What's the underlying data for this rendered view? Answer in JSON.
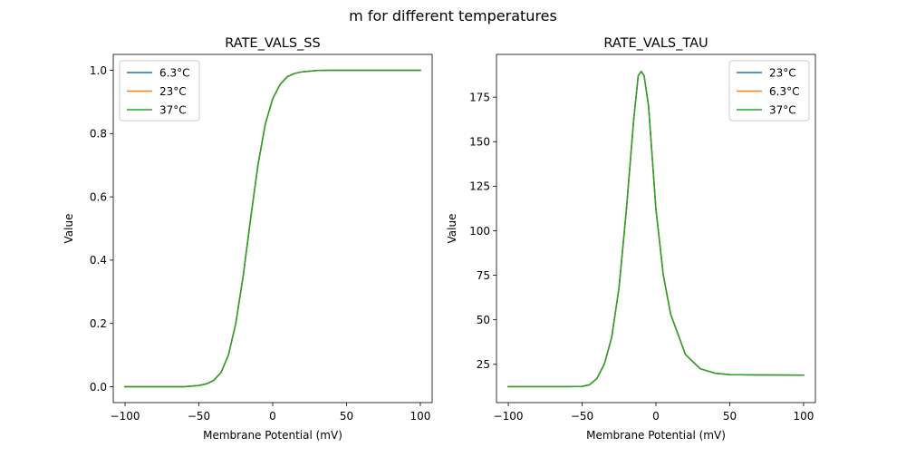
{
  "figure": {
    "suptitle": "m for different temperatures"
  },
  "chart_data": [
    {
      "type": "line",
      "title": "RATE_VALS_SS",
      "xlabel": "Membrane Potential (mV)",
      "ylabel": "Value",
      "xlim": [
        -108,
        108
      ],
      "ylim": [
        -0.05,
        1.05
      ],
      "xticks": [
        -100,
        -50,
        0,
        50,
        100
      ],
      "xtick_labels": [
        "−100",
        "−50",
        "0",
        "50",
        "100"
      ],
      "yticks": [
        0.0,
        0.2,
        0.4,
        0.6,
        0.8,
        1.0
      ],
      "ytick_labels": [
        "0.0",
        "0.2",
        "0.4",
        "0.6",
        "0.8",
        "1.0"
      ],
      "legend_position": "upper left",
      "grid": false,
      "x": [
        -100,
        -90,
        -80,
        -70,
        -60,
        -50,
        -45,
        -40,
        -35,
        -30,
        -25,
        -20,
        -15,
        -10,
        -5,
        0,
        5,
        10,
        15,
        20,
        30,
        40,
        50,
        60,
        70,
        80,
        90,
        100
      ],
      "series": [
        {
          "name": "6.3°C",
          "color": "#1f77b4",
          "values": [
            0.0,
            0.0,
            0.0,
            0.0,
            0.0,
            0.004,
            0.009,
            0.02,
            0.045,
            0.1,
            0.2,
            0.35,
            0.53,
            0.7,
            0.83,
            0.91,
            0.955,
            0.98,
            0.99,
            0.995,
            0.999,
            1.0,
            1.0,
            1.0,
            1.0,
            1.0,
            1.0,
            1.0
          ]
        },
        {
          "name": "23°C",
          "color": "#ff7f0e",
          "values": [
            0.0,
            0.0,
            0.0,
            0.0,
            0.0,
            0.004,
            0.009,
            0.02,
            0.045,
            0.1,
            0.2,
            0.35,
            0.53,
            0.7,
            0.83,
            0.91,
            0.955,
            0.98,
            0.99,
            0.995,
            0.999,
            1.0,
            1.0,
            1.0,
            1.0,
            1.0,
            1.0,
            1.0
          ]
        },
        {
          "name": "37°C",
          "color": "#2ca02c",
          "values": [
            0.0,
            0.0,
            0.0,
            0.0,
            0.0,
            0.004,
            0.009,
            0.02,
            0.045,
            0.1,
            0.2,
            0.35,
            0.53,
            0.7,
            0.83,
            0.91,
            0.955,
            0.98,
            0.99,
            0.995,
            0.999,
            1.0,
            1.0,
            1.0,
            1.0,
            1.0,
            1.0,
            1.0
          ]
        }
      ]
    },
    {
      "type": "line",
      "title": "RATE_VALS_TAU",
      "xlabel": "Membrane Potential (mV)",
      "ylabel": "Value",
      "xlim": [
        -108,
        108
      ],
      "ylim": [
        3.5,
        199
      ],
      "xticks": [
        -100,
        -50,
        0,
        50,
        100
      ],
      "xtick_labels": [
        "−100",
        "−50",
        "0",
        "50",
        "100"
      ],
      "yticks": [
        25,
        50,
        75,
        100,
        125,
        150,
        175
      ],
      "ytick_labels": [
        "25",
        "50",
        "75",
        "100",
        "125",
        "150",
        "175"
      ],
      "legend_position": "upper right",
      "grid": false,
      "x": [
        -100,
        -80,
        -60,
        -50,
        -45,
        -40,
        -35,
        -30,
        -25,
        -20,
        -15,
        -12,
        -10,
        -8,
        -5,
        0,
        5,
        10,
        20,
        30,
        40,
        50,
        70,
        100
      ],
      "series": [
        {
          "name": "23°C",
          "color": "#1f77b4",
          "values": [
            12.5,
            12.5,
            12.5,
            12.6,
            13.5,
            17,
            25,
            40,
            68,
            112,
            163,
            187,
            189.5,
            187,
            170,
            112,
            75,
            53,
            30.5,
            22.5,
            20,
            19.2,
            19,
            18.9
          ]
        },
        {
          "name": "6.3°C",
          "color": "#ff7f0e",
          "values": [
            12.5,
            12.5,
            12.5,
            12.6,
            13.5,
            17,
            25,
            40,
            68,
            112,
            163,
            187,
            189.5,
            187,
            170,
            112,
            75,
            53,
            30.5,
            22.5,
            20,
            19.2,
            19,
            18.9
          ]
        },
        {
          "name": "37°C",
          "color": "#2ca02c",
          "values": [
            12.5,
            12.5,
            12.5,
            12.6,
            13.5,
            17,
            25,
            40,
            68,
            112,
            163,
            187,
            189.5,
            187,
            170,
            112,
            75,
            53,
            30.5,
            22.5,
            20,
            19.2,
            19,
            18.9
          ]
        }
      ]
    }
  ]
}
